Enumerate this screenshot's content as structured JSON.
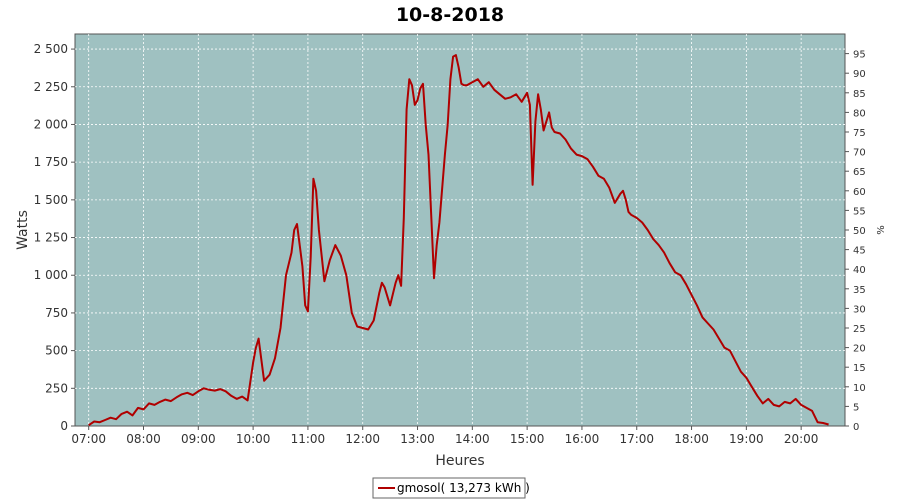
{
  "chart_data": {
    "type": "line",
    "title": "10-8-2018",
    "xlabel": "Heures",
    "ylabel": "Watts",
    "y2label": "%",
    "xlim": [
      6.75,
      20.8
    ],
    "ylim": [
      0,
      2600
    ],
    "y2lim": [
      0,
      100
    ],
    "grid": true,
    "legend_position": "bottom",
    "colors": {
      "plot_background": "#9fc1c1",
      "series": "#b00000",
      "grid": "#ffffff"
    },
    "x_ticks": [
      {
        "value": 7,
        "label": "07:00"
      },
      {
        "value": 8,
        "label": "08:00"
      },
      {
        "value": 9,
        "label": "09:00"
      },
      {
        "value": 10,
        "label": "10:00"
      },
      {
        "value": 11,
        "label": "11:00"
      },
      {
        "value": 12,
        "label": "12:00"
      },
      {
        "value": 13,
        "label": "13:00"
      },
      {
        "value": 14,
        "label": "14:00"
      },
      {
        "value": 15,
        "label": "15:00"
      },
      {
        "value": 16,
        "label": "16:00"
      },
      {
        "value": 17,
        "label": "17:00"
      },
      {
        "value": 18,
        "label": "18:00"
      },
      {
        "value": 19,
        "label": "19:00"
      },
      {
        "value": 20,
        "label": "20:00"
      }
    ],
    "y_ticks": [
      {
        "value": 0,
        "label": "0"
      },
      {
        "value": 250,
        "label": "250"
      },
      {
        "value": 500,
        "label": "500"
      },
      {
        "value": 750,
        "label": "750"
      },
      {
        "value": 1000,
        "label": "1 000"
      },
      {
        "value": 1250,
        "label": "1 250"
      },
      {
        "value": 1500,
        "label": "1 500"
      },
      {
        "value": 1750,
        "label": "1 750"
      },
      {
        "value": 2000,
        "label": "2 000"
      },
      {
        "value": 2250,
        "label": "2 250"
      },
      {
        "value": 2500,
        "label": "2 500"
      }
    ],
    "y2_ticks": [
      "0",
      "5",
      "10",
      "15",
      "20",
      "25",
      "30",
      "35",
      "40",
      "45",
      "50",
      "55",
      "60",
      "65",
      "70",
      "75",
      "80",
      "85",
      "90",
      "95"
    ],
    "series": [
      {
        "name": "gmosol( 13,273 kWh )",
        "x": [
          7.0,
          7.1,
          7.2,
          7.3,
          7.4,
          7.5,
          7.6,
          7.7,
          7.8,
          7.9,
          8.0,
          8.1,
          8.2,
          8.3,
          8.4,
          8.5,
          8.6,
          8.7,
          8.8,
          8.9,
          9.0,
          9.1,
          9.2,
          9.3,
          9.4,
          9.5,
          9.6,
          9.7,
          9.8,
          9.9,
          10.0,
          10.05,
          10.1,
          10.2,
          10.3,
          10.4,
          10.5,
          10.6,
          10.7,
          10.75,
          10.8,
          10.9,
          10.95,
          11.0,
          11.05,
          11.1,
          11.15,
          11.2,
          11.3,
          11.4,
          11.5,
          11.6,
          11.7,
          11.8,
          11.9,
          12.0,
          12.1,
          12.2,
          12.3,
          12.35,
          12.4,
          12.5,
          12.6,
          12.65,
          12.7,
          12.75,
          12.8,
          12.85,
          12.9,
          12.95,
          13.0,
          13.05,
          13.1,
          13.15,
          13.2,
          13.25,
          13.3,
          13.35,
          13.4,
          13.5,
          13.55,
          13.6,
          13.65,
          13.7,
          13.75,
          13.8,
          13.85,
          13.9,
          14.0,
          14.1,
          14.2,
          14.3,
          14.4,
          14.5,
          14.6,
          14.7,
          14.8,
          14.9,
          15.0,
          15.05,
          15.1,
          15.15,
          15.2,
          15.25,
          15.3,
          15.4,
          15.45,
          15.5,
          15.6,
          15.7,
          15.8,
          15.9,
          16.0,
          16.1,
          16.2,
          16.3,
          16.4,
          16.5,
          16.6,
          16.7,
          16.75,
          16.8,
          16.85,
          16.9,
          17.0,
          17.1,
          17.2,
          17.3,
          17.4,
          17.5,
          17.6,
          17.7,
          17.8,
          17.9,
          18.0,
          18.1,
          18.2,
          18.3,
          18.4,
          18.5,
          18.6,
          18.7,
          18.8,
          18.9,
          19.0,
          19.1,
          19.2,
          19.3,
          19.4,
          19.5,
          19.6,
          19.7,
          19.8,
          19.9,
          20.0,
          20.1,
          20.2,
          20.3,
          20.4,
          20.5
        ],
        "values": [
          5,
          30,
          25,
          40,
          55,
          45,
          80,
          95,
          70,
          120,
          110,
          150,
          140,
          160,
          175,
          165,
          190,
          210,
          220,
          205,
          230,
          250,
          240,
          235,
          245,
          230,
          200,
          180,
          195,
          170,
          420,
          520,
          580,
          300,
          340,
          450,
          650,
          1000,
          1150,
          1300,
          1340,
          1060,
          800,
          760,
          1120,
          1640,
          1560,
          1300,
          960,
          1100,
          1200,
          1130,
          1000,
          750,
          660,
          650,
          640,
          700,
          880,
          950,
          920,
          800,
          950,
          1000,
          930,
          1380,
          2100,
          2300,
          2260,
          2130,
          2160,
          2240,
          2270,
          2000,
          1800,
          1400,
          980,
          1200,
          1350,
          1800,
          2000,
          2300,
          2450,
          2460,
          2380,
          2270,
          2260,
          2260,
          2280,
          2300,
          2250,
          2280,
          2230,
          2200,
          2170,
          2180,
          2200,
          2150,
          2210,
          2130,
          1600,
          2020,
          2200,
          2100,
          1960,
          2080,
          1980,
          1950,
          1940,
          1900,
          1840,
          1800,
          1790,
          1770,
          1720,
          1660,
          1640,
          1580,
          1480,
          1540,
          1560,
          1500,
          1420,
          1400,
          1380,
          1350,
          1300,
          1240,
          1200,
          1150,
          1080,
          1020,
          1000,
          940,
          870,
          800,
          720,
          680,
          640,
          580,
          520,
          500,
          430,
          360,
          320,
          260,
          200,
          150,
          180,
          140,
          130,
          160,
          150,
          180,
          140,
          120,
          100,
          25,
          20,
          10
        ]
      }
    ]
  }
}
